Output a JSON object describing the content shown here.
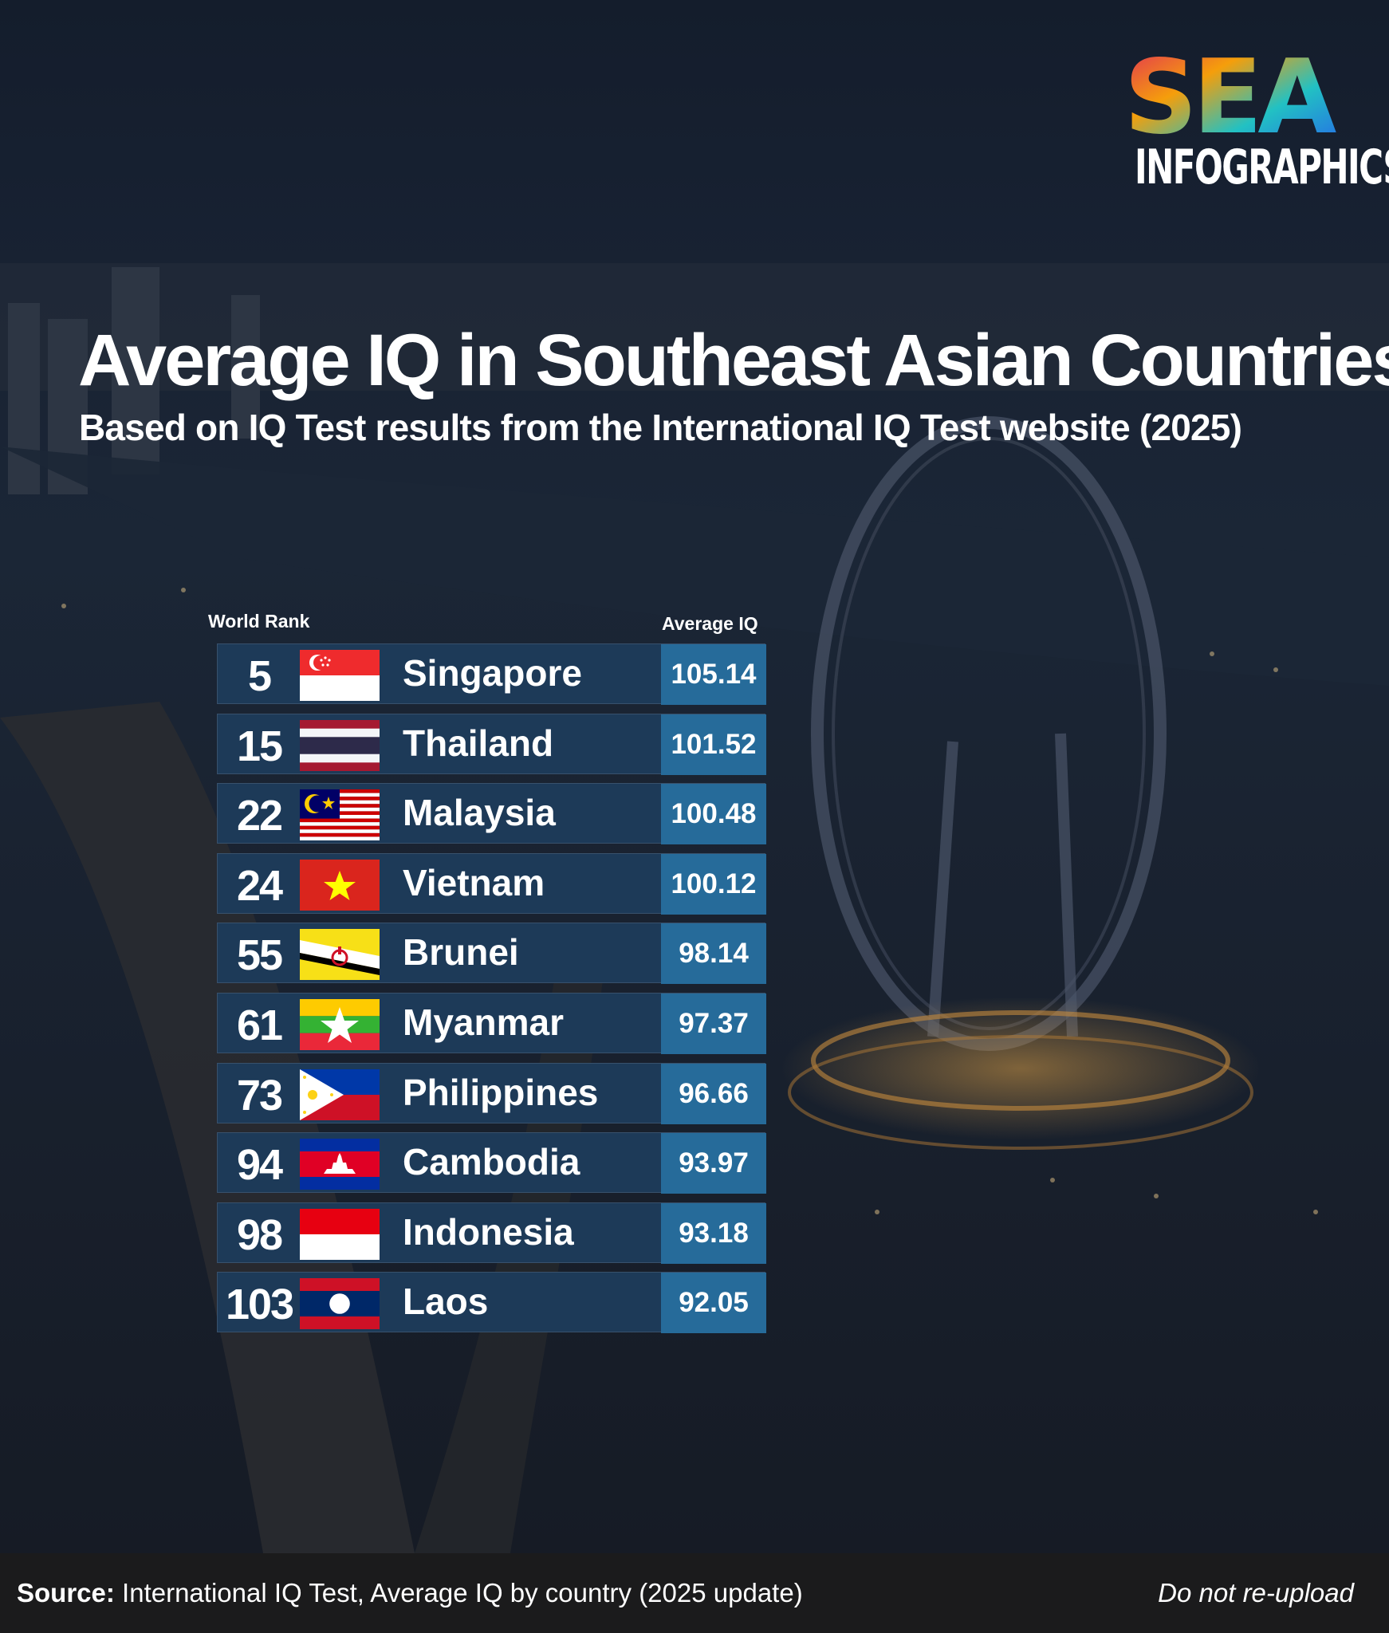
{
  "logo": {
    "word": "SEA",
    "sub": "INFOGRAPHICS"
  },
  "title": "Average IQ in Southeast Asian Countries",
  "subtitle": "Based on IQ Test results from the International IQ Test website (2025)",
  "chart_data": {
    "type": "table",
    "columns": {
      "rank": "World Rank",
      "value": "Average IQ"
    },
    "rows": [
      {
        "rank": "5",
        "country": "Singapore",
        "iq": "105.14",
        "flag": "singapore-flag-icon"
      },
      {
        "rank": "15",
        "country": "Thailand",
        "iq": "101.52",
        "flag": "thailand-flag-icon"
      },
      {
        "rank": "22",
        "country": "Malaysia",
        "iq": "100.48",
        "flag": "malaysia-flag-icon"
      },
      {
        "rank": "24",
        "country": "Vietnam",
        "iq": "100.12",
        "flag": "vietnam-flag-icon"
      },
      {
        "rank": "55",
        "country": "Brunei",
        "iq": "98.14",
        "flag": "brunei-flag-icon"
      },
      {
        "rank": "61",
        "country": "Myanmar",
        "iq": "97.37",
        "flag": "myanmar-flag-icon"
      },
      {
        "rank": "73",
        "country": "Philippines",
        "iq": "96.66",
        "flag": "philippines-flag-icon"
      },
      {
        "rank": "94",
        "country": "Cambodia",
        "iq": "93.97",
        "flag": "cambodia-flag-icon"
      },
      {
        "rank": "98",
        "country": "Indonesia",
        "iq": "93.18",
        "flag": "indonesia-flag-icon"
      },
      {
        "rank": "103",
        "country": "Laos",
        "iq": "92.05",
        "flag": "laos-flag-icon"
      }
    ]
  },
  "footer": {
    "source_label": "Source:",
    "source_text": "International IQ Test, Average IQ by country (2025 update)",
    "note": "Do not re-upload"
  },
  "colors": {
    "row_bg": "#1d3a58",
    "value_bg": "#266b9a",
    "footer_bg": "#1b1b1c"
  }
}
